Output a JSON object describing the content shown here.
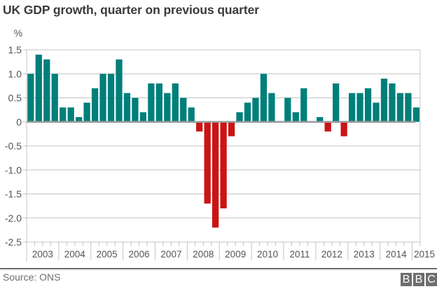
{
  "chart_data": {
    "type": "bar",
    "title": "UK GDP growth, quarter on previous quarter",
    "ylabel": "%",
    "xlabel": "",
    "ylim": [
      -2.5,
      1.5
    ],
    "yticks": [
      1.5,
      1.0,
      0.5,
      0,
      -0.5,
      -1.0,
      -1.5,
      -2.0,
      -2.5
    ],
    "ytick_labels": [
      "1.5",
      "1.0",
      "0.5",
      "0",
      "-0.5",
      "-1.0",
      "-1.5",
      "-2.0",
      "-2.5"
    ],
    "grid": true,
    "x_year_labels": [
      "2003",
      "2004",
      "2005",
      "2006",
      "2007",
      "2008",
      "2009",
      "2010",
      "2011",
      "2012",
      "2013",
      "2014",
      "2015"
    ],
    "quarters_per_year": 4,
    "start": "2003 Q1",
    "end": "2015 Q1",
    "values": [
      1.0,
      1.4,
      1.3,
      1.0,
      0.3,
      0.3,
      0.1,
      0.4,
      0.7,
      1.0,
      1.0,
      1.3,
      0.6,
      0.5,
      0.2,
      0.8,
      0.8,
      0.6,
      0.8,
      0.5,
      0.3,
      -0.2,
      -1.7,
      -2.2,
      -1.8,
      -0.3,
      0.2,
      0.4,
      0.5,
      1.0,
      0.6,
      0.0,
      0.5,
      0.2,
      0.7,
      0.0,
      0.1,
      -0.2,
      0.8,
      -0.3,
      0.6,
      0.6,
      0.7,
      0.4,
      0.9,
      0.8,
      0.6,
      0.6,
      0.3
    ],
    "colors": {
      "positive": "#007f7a",
      "negative": "#cc1313",
      "grid": "#c4c4c4",
      "axis": "#9a9a9a"
    }
  },
  "footer": {
    "source": "Source: ONS",
    "logo_letters": [
      "B",
      "B",
      "C"
    ]
  }
}
